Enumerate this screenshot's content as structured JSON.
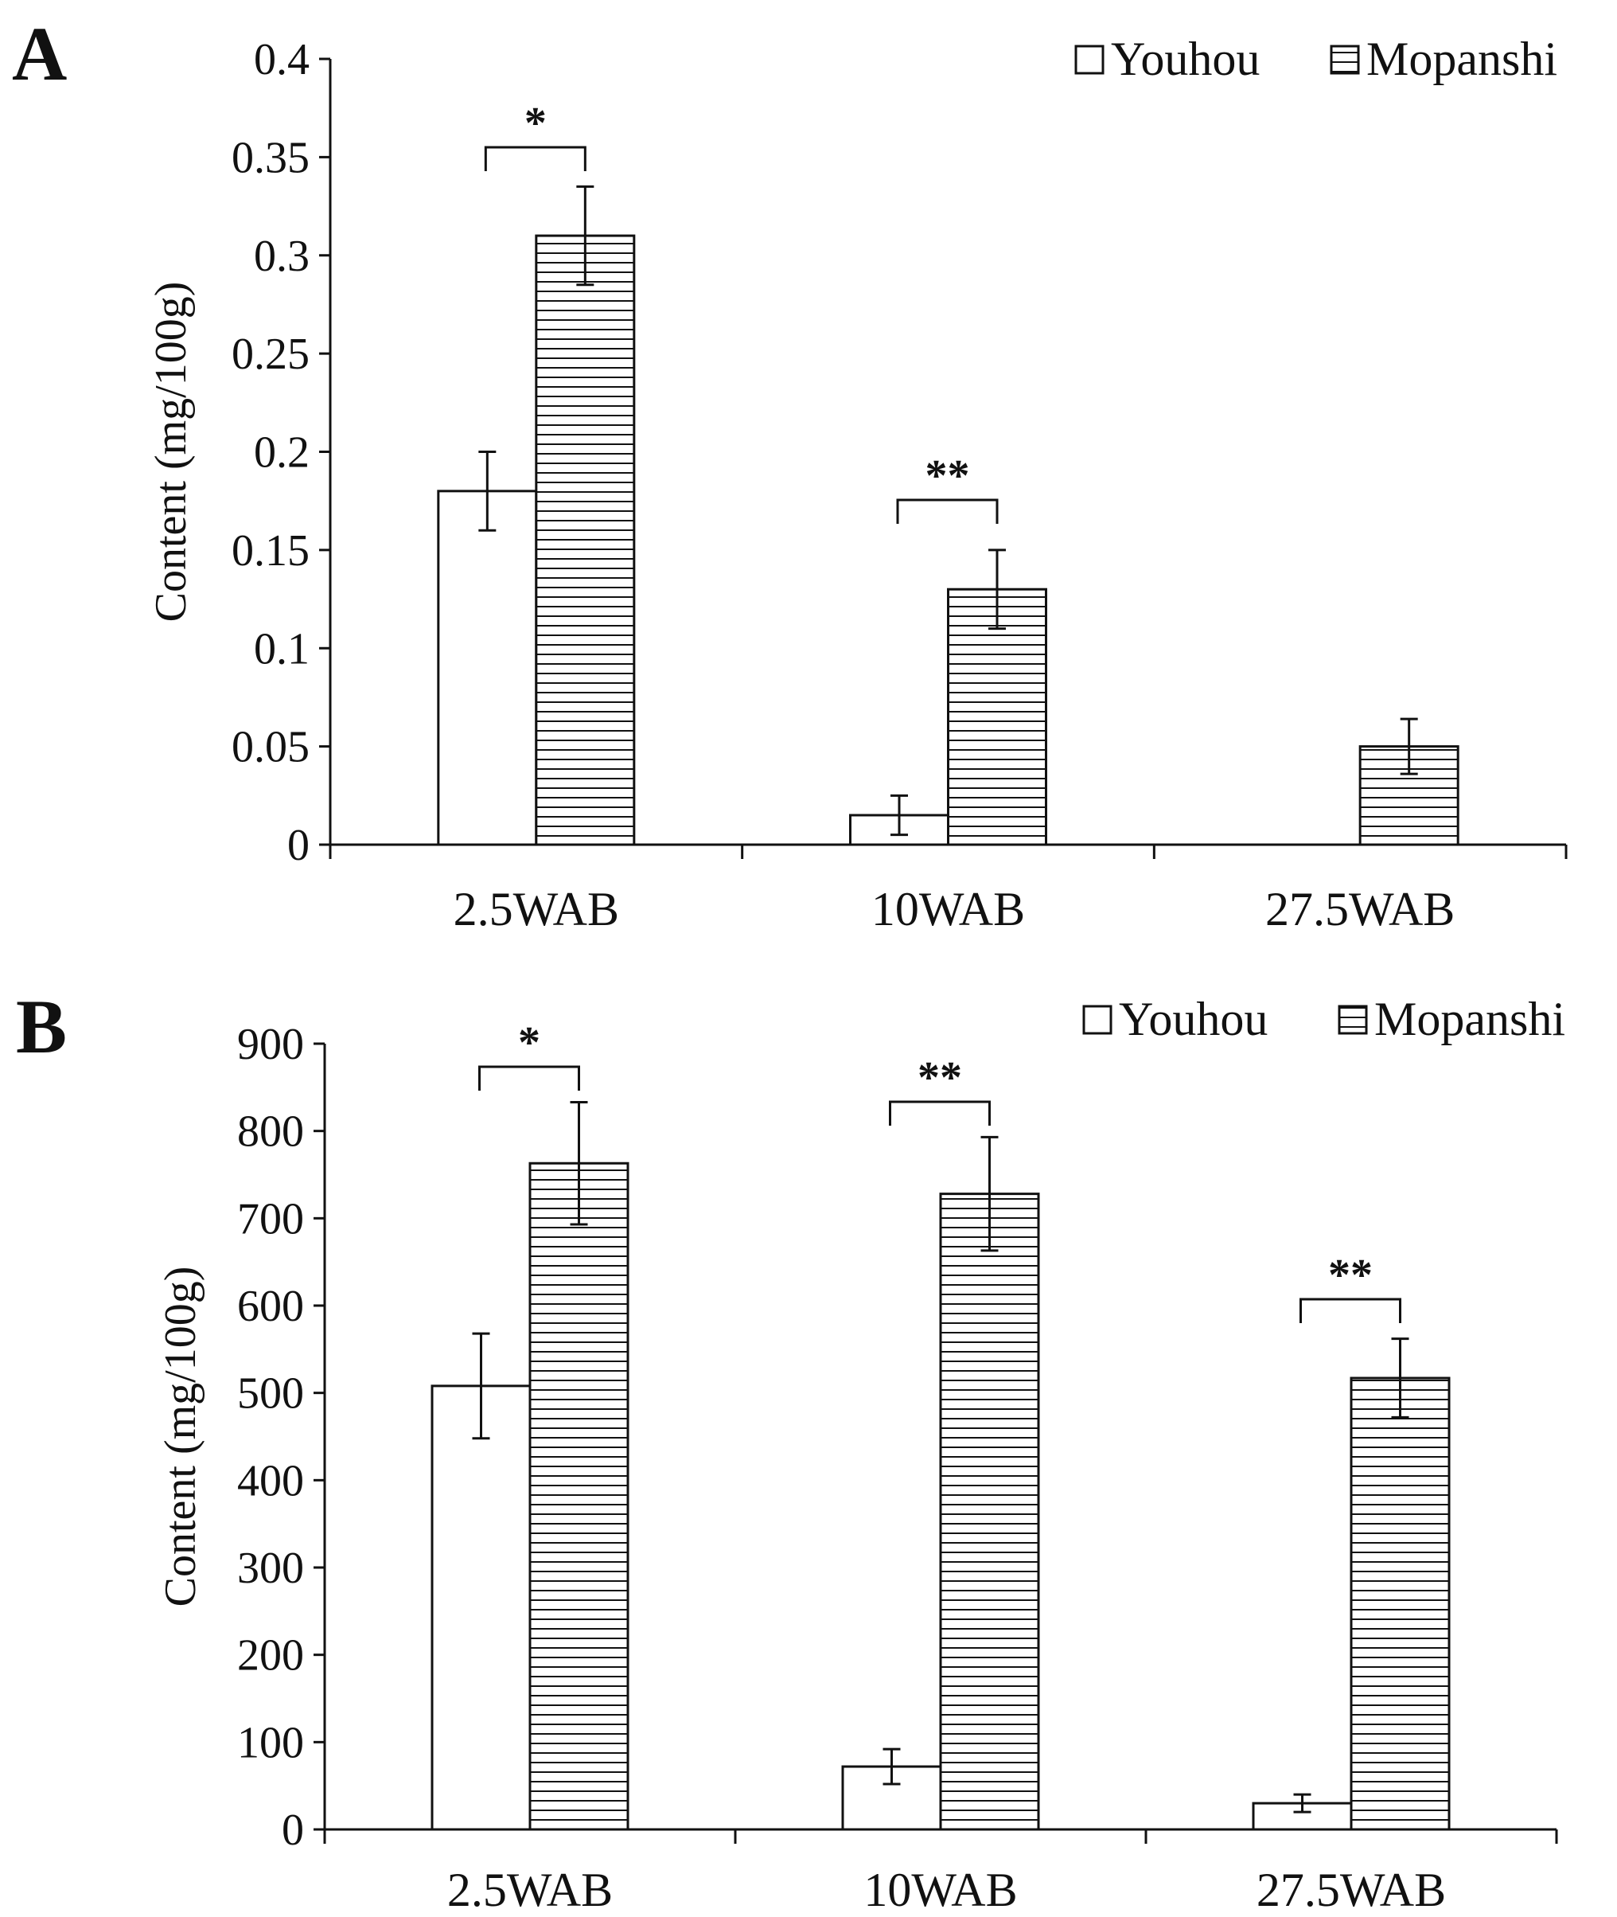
{
  "chart_data": [
    {
      "panel": "A",
      "type": "bar",
      "ylabel": "Content (mg/100g)",
      "xlabel": "",
      "categories": [
        "2.5WAB",
        "10WAB",
        "27.5WAB"
      ],
      "ylim": [
        0,
        0.4
      ],
      "yticks": [
        0,
        0.05,
        0.1,
        0.15,
        0.2,
        0.25,
        0.3,
        0.35,
        0.4
      ],
      "ytick_labels": [
        "0",
        "0.05",
        "0.1",
        "0.15",
        "0.2",
        "0.25",
        "0.3",
        "0.35",
        "0.4"
      ],
      "legend_position": "top-right",
      "series": [
        {
          "name": "Youhou",
          "pattern": "open",
          "values": [
            0.18,
            0.015,
            0
          ],
          "errors": [
            0.02,
            0.01,
            0
          ]
        },
        {
          "name": "Mopanshi",
          "pattern": "horizontal-hatch",
          "values": [
            0.31,
            0.13,
            0.05
          ],
          "errors": [
            0.025,
            0.02,
            0.014
          ]
        }
      ],
      "significance": [
        {
          "category": "2.5WAB",
          "label": "*"
        },
        {
          "category": "10WAB",
          "label": "**"
        }
      ]
    },
    {
      "panel": "B",
      "type": "bar",
      "ylabel": "Content (mg/100g)",
      "xlabel": "",
      "categories": [
        "2.5WAB",
        "10WAB",
        "27.5WAB"
      ],
      "ylim": [
        0,
        900
      ],
      "yticks": [
        0,
        100,
        200,
        300,
        400,
        500,
        600,
        700,
        800,
        900
      ],
      "ytick_labels": [
        "0",
        "100",
        "200",
        "300",
        "400",
        "500",
        "600",
        "700",
        "800",
        "900"
      ],
      "legend_position": "top-right",
      "series": [
        {
          "name": "Youhou",
          "pattern": "open",
          "values": [
            508,
            72,
            30
          ],
          "errors": [
            60,
            20,
            10
          ]
        },
        {
          "name": "Mopanshi",
          "pattern": "horizontal-hatch",
          "values": [
            763,
            728,
            517
          ],
          "errors": [
            70,
            65,
            45
          ]
        }
      ],
      "significance": [
        {
          "category": "2.5WAB",
          "label": "*"
        },
        {
          "category": "10WAB",
          "label": "**"
        },
        {
          "category": "27.5WAB",
          "label": "**"
        }
      ]
    }
  ],
  "colors": {
    "ink": "#111111",
    "background": "#ffffff"
  }
}
